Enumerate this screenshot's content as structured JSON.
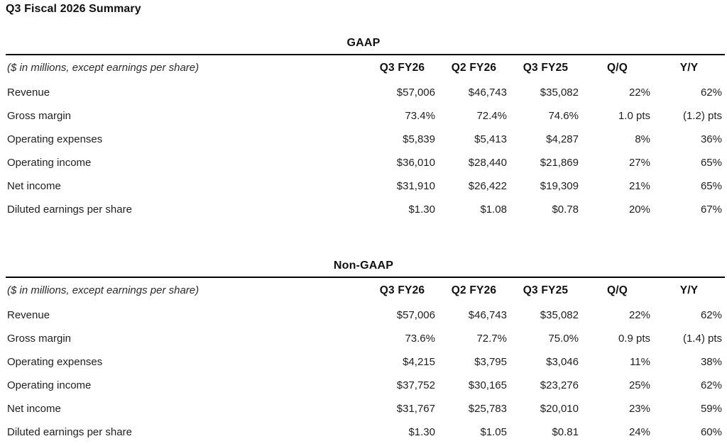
{
  "page": {
    "title": "Q3 Fiscal 2026 Summary"
  },
  "tables": [
    {
      "heading": "GAAP",
      "note": "($ in millions, except earnings per share)",
      "columns": [
        "Q3 FY26",
        "Q2 FY26",
        "Q3 FY25",
        "Q/Q",
        "Y/Y"
      ],
      "rows": [
        {
          "label": "Revenue",
          "values": [
            "$57,006",
            "$46,743",
            "$35,082",
            "22%",
            "62%"
          ]
        },
        {
          "label": "Gross margin",
          "values": [
            "73.4%",
            "72.4%",
            "74.6%",
            "1.0 pts",
            "(1.2) pts"
          ]
        },
        {
          "label": "Operating expenses",
          "values": [
            "$5,839",
            "$5,413",
            "$4,287",
            "8%",
            "36%"
          ]
        },
        {
          "label": "Operating income",
          "values": [
            "$36,010",
            "$28,440",
            "$21,869",
            "27%",
            "65%"
          ]
        },
        {
          "label": "Net income",
          "values": [
            "$31,910",
            "$26,422",
            "$19,309",
            "21%",
            "65%"
          ]
        },
        {
          "label": "Diluted earnings per share",
          "values": [
            "$1.30",
            "$1.08",
            "$0.78",
            "20%",
            "67%"
          ]
        }
      ]
    },
    {
      "heading": "Non-GAAP",
      "note": "($ in millions, except earnings per share)",
      "columns": [
        "Q3 FY26",
        "Q2 FY26",
        "Q3 FY25",
        "Q/Q",
        "Y/Y"
      ],
      "rows": [
        {
          "label": "Revenue",
          "values": [
            "$57,006",
            "$46,743",
            "$35,082",
            "22%",
            "62%"
          ]
        },
        {
          "label": "Gross margin",
          "values": [
            "73.6%",
            "72.7%",
            "75.0%",
            "0.9 pts",
            "(1.4) pts"
          ]
        },
        {
          "label": "Operating expenses",
          "values": [
            "$4,215",
            "$3,795",
            "$3,046",
            "11%",
            "38%"
          ]
        },
        {
          "label": "Operating income",
          "values": [
            "$37,752",
            "$30,165",
            "$23,276",
            "25%",
            "62%"
          ]
        },
        {
          "label": "Net income",
          "values": [
            "$31,767",
            "$25,783",
            "$20,010",
            "23%",
            "59%"
          ]
        },
        {
          "label": "Diluted earnings per share",
          "values": [
            "$1.30",
            "$1.05",
            "$0.81",
            "24%",
            "60%"
          ]
        }
      ]
    }
  ],
  "colors": {
    "text": "#1f1f1f",
    "rule": "#000000",
    "background": "#ffffff"
  }
}
